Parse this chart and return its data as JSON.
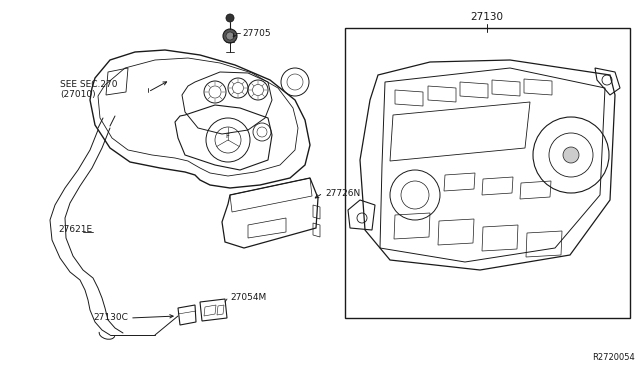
{
  "bg_color": "#ffffff",
  "fig_width": 6.4,
  "fig_height": 3.72,
  "dpi": 100,
  "labels": {
    "see_sec": "SEE SEC.270\n(27010)",
    "27705": "27705",
    "27726N": "27726N",
    "27621E": "27621E",
    "27130C": "27130C",
    "27054M": "27054M",
    "27130": "27130",
    "R2720054": "R2720054"
  },
  "lc": "#1a1a1a",
  "lw": 0.7,
  "fs": 6.5
}
